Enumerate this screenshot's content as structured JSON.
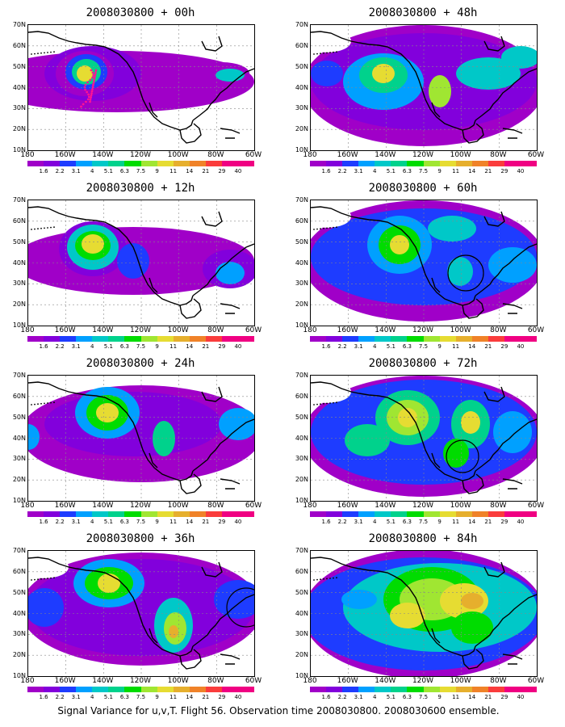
{
  "figure": {
    "footer": "Signal Variance for u,v,T. Flight 56. Observation time 2008030800. 2008030600 ensemble.",
    "y_ticks": [
      "70N",
      "60N",
      "50N",
      "40N",
      "30N",
      "20N",
      "10N"
    ],
    "x_ticks": [
      "180",
      "160W",
      "140W",
      "120W",
      "100W",
      "80W",
      "60W"
    ],
    "colorbar_labels": [
      "1.6",
      "2.2",
      "3.1",
      "4",
      "5.1",
      "6.3",
      "7.5",
      "9",
      "11",
      "14",
      "21",
      "29",
      "40"
    ],
    "colorbar_colors": [
      "#a000c8",
      "#8200dc",
      "#1e3cff",
      "#00a0ff",
      "#00c8c8",
      "#00d28c",
      "#00dc00",
      "#a0e632",
      "#e6dc32",
      "#e6af2d",
      "#f08228",
      "#fa3c3c",
      "#f00082"
    ]
  },
  "panels": [
    {
      "title": "2008030800 + 00h"
    },
    {
      "title": "2008030800 + 48h"
    },
    {
      "title": "2008030800 + 12h"
    },
    {
      "title": "2008030800 + 60h"
    },
    {
      "title": "2008030800 + 24h"
    },
    {
      "title": "2008030800 + 72h"
    },
    {
      "title": "2008030800 + 36h"
    },
    {
      "title": "2008030800 + 84h"
    }
  ]
}
